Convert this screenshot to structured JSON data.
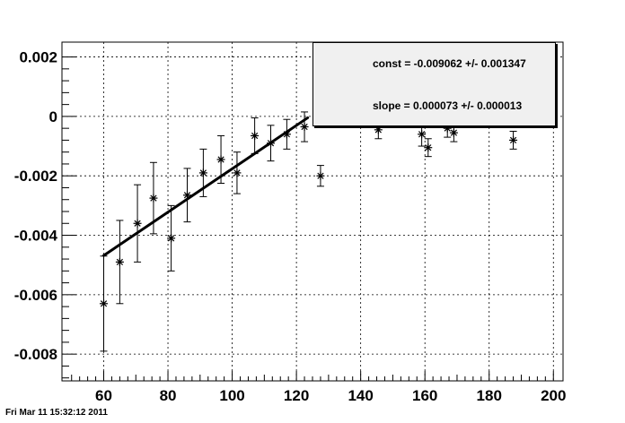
{
  "footer": {
    "timestamp": "Fri Mar 11 15:32:12 2011"
  },
  "stats": {
    "const_text": "const = -0.009062 +/- 0.001347",
    "slope_text": "slope = 0.000073 +/- 0.000013"
  },
  "chart_data": {
    "type": "scatter",
    "title": "",
    "xlabel": "",
    "ylabel": "",
    "xlim": [
      47,
      203
    ],
    "ylim": [
      -0.0089,
      0.0025
    ],
    "grid": true,
    "x_ticks": [
      {
        "value": 60,
        "label": "60"
      },
      {
        "value": 80,
        "label": "80"
      },
      {
        "value": 100,
        "label": "100"
      },
      {
        "value": 120,
        "label": "120"
      },
      {
        "value": 140,
        "label": "140"
      },
      {
        "value": 160,
        "label": "160"
      },
      {
        "value": 180,
        "label": "180"
      },
      {
        "value": 200,
        "label": "200"
      }
    ],
    "y_ticks": [
      {
        "value": 0.002,
        "label": "0.002"
      },
      {
        "value": 0,
        "label": "0"
      },
      {
        "value": -0.002,
        "label": "-0.002"
      },
      {
        "value": -0.004,
        "label": "-0.004"
      },
      {
        "value": -0.006,
        "label": "-0.006"
      },
      {
        "value": -0.008,
        "label": "-0.008"
      }
    ],
    "series": [
      {
        "marker": "star",
        "color": "#000000",
        "points": [
          {
            "x": 60,
            "y": -0.0063,
            "err": 0.0016
          },
          {
            "x": 65,
            "y": -0.0049,
            "err": 0.0014
          },
          {
            "x": 70.5,
            "y": -0.0036,
            "err": 0.0013
          },
          {
            "x": 75.5,
            "y": -0.00275,
            "err": 0.0012
          },
          {
            "x": 81,
            "y": -0.0041,
            "err": 0.0011
          },
          {
            "x": 86,
            "y": -0.00265,
            "err": 0.0009
          },
          {
            "x": 91,
            "y": -0.0019,
            "err": 0.0008
          },
          {
            "x": 96.5,
            "y": -0.00145,
            "err": 0.0008
          },
          {
            "x": 101.5,
            "y": -0.0019,
            "err": 0.0007
          },
          {
            "x": 107,
            "y": -0.00065,
            "err": 0.0006
          },
          {
            "x": 112,
            "y": -0.0009,
            "err": 0.0006
          },
          {
            "x": 117,
            "y": -0.0006,
            "err": 0.0005
          },
          {
            "x": 122.5,
            "y": -0.00035,
            "err": 0.0005
          },
          {
            "x": 127.5,
            "y": -0.002,
            "err": 0.00035
          },
          {
            "x": 145.5,
            "y": -0.00045,
            "err": 0.0003
          },
          {
            "x": 159,
            "y": -0.0006,
            "err": 0.0004
          },
          {
            "x": 161,
            "y": -0.00105,
            "err": 0.0003
          },
          {
            "x": 167,
            "y": -0.0004,
            "err": 0.0003
          },
          {
            "x": 169,
            "y": -0.00055,
            "err": 0.0003
          },
          {
            "x": 187.5,
            "y": -0.0008,
            "err": 0.0003
          }
        ]
      }
    ],
    "fit": {
      "type": "linear",
      "const": -0.009062,
      "slope": 7.3e-05,
      "x_range": [
        60,
        123.5
      ]
    }
  }
}
